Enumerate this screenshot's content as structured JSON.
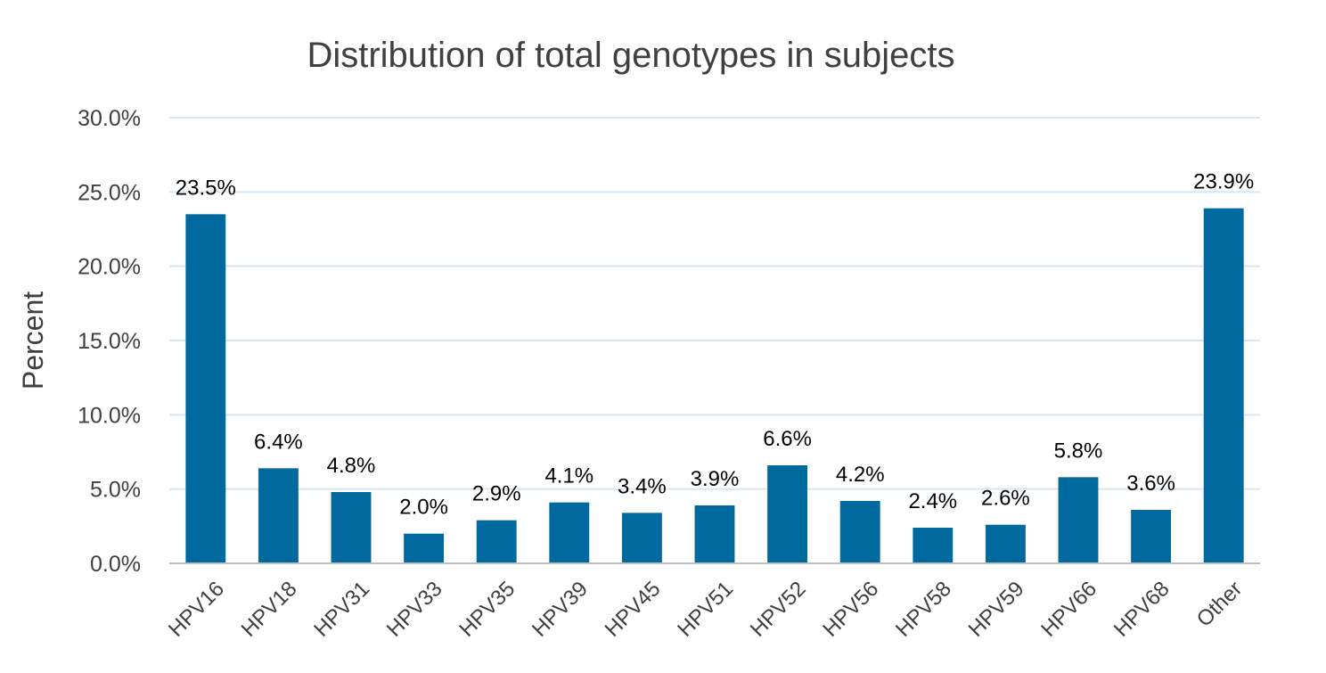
{
  "chart_data": {
    "type": "bar",
    "title": "Distribution of total genotypes in subjects",
    "xlabel": "",
    "ylabel": "Percent",
    "categories": [
      "HPV16",
      "HPV18",
      "HPV31",
      "HPV33",
      "HPV35",
      "HPV39",
      "HPV45",
      "HPV51",
      "HPV52",
      "HPV56",
      "HPV58",
      "HPV59",
      "HPV66",
      "HPV68",
      "Other"
    ],
    "values": [
      23.5,
      6.4,
      4.8,
      2.0,
      2.9,
      4.1,
      3.4,
      3.9,
      6.6,
      4.2,
      2.4,
      2.6,
      5.8,
      3.6,
      23.9
    ],
    "data_labels": [
      "23.5%",
      "6.4%",
      "4.8%",
      "2.0%",
      "2.9%",
      "4.1%",
      "3.4%",
      "3.9%",
      "6.6%",
      "4.2%",
      "2.4%",
      "2.6%",
      "5.8%",
      "3.6%",
      "23.9%"
    ],
    "ylim": [
      0,
      30
    ],
    "yticks": [
      0,
      5,
      10,
      15,
      20,
      25,
      30
    ],
    "ytick_labels": [
      "0.0%",
      "5.0%",
      "10.0%",
      "15.0%",
      "20.0%",
      "25.0%",
      "30.0%"
    ],
    "grid": true,
    "legend": "none",
    "colors": {
      "bar": "#006a9f",
      "grid": "#d9e6f0",
      "axis": "#bfbfbf"
    }
  }
}
